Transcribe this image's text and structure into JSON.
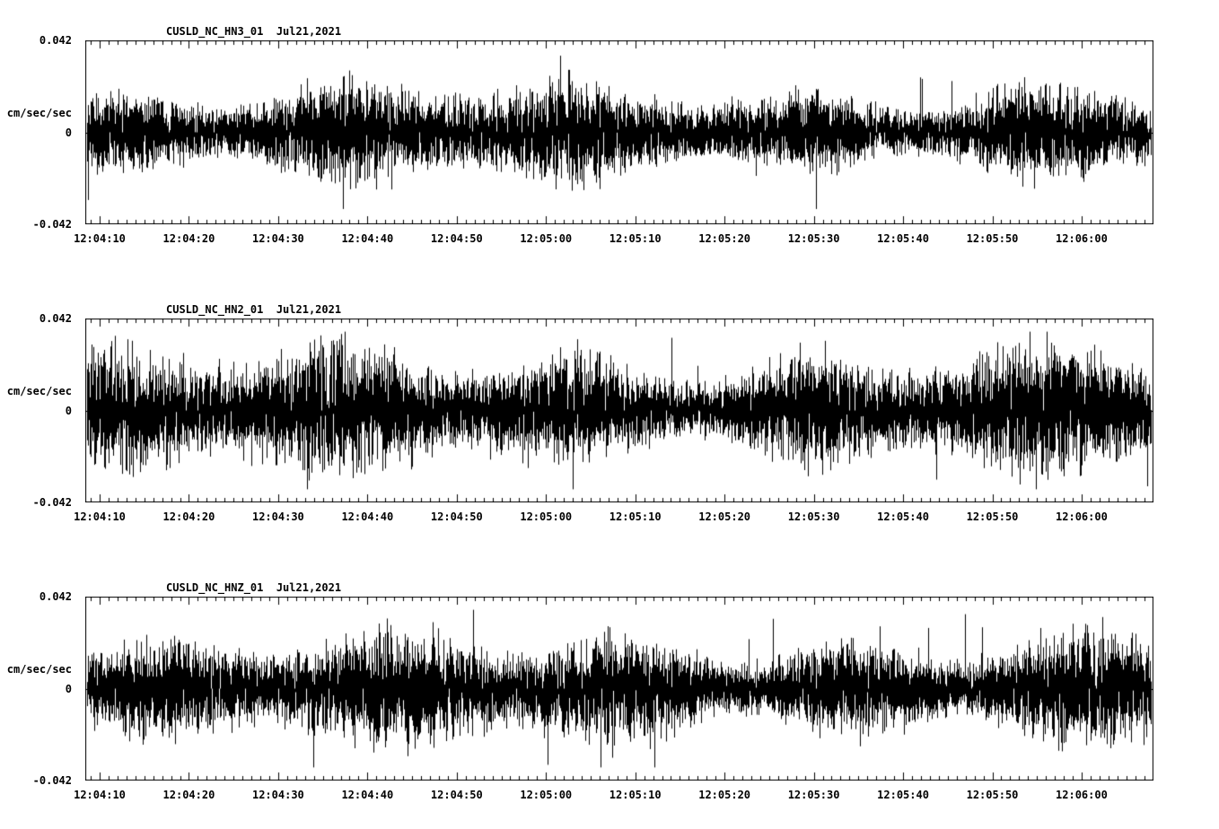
{
  "page": {
    "background": "#ffffff",
    "text_color": "#000000",
    "trace_color": "#000000"
  },
  "chart_data": [
    {
      "type": "line",
      "title": "CUSLD_NC_HN3_01  Jul21,2021",
      "station": "CUSLD_NC_HN3_01",
      "date": "Jul21,2021",
      "ylabel": "cm/sec/sec",
      "ylim": [
        -0.042,
        0.042
      ],
      "ytick_labels": [
        "0.042",
        "0",
        "-0.042"
      ],
      "x_tick_labels": [
        "12:04:10",
        "12:04:20",
        "12:04:30",
        "12:04:40",
        "12:04:50",
        "12:05:00",
        "12:05:10",
        "12:05:20",
        "12:05:30",
        "12:05:40",
        "12:05:50",
        "12:06:00"
      ],
      "x_minor_ticks_per_major": 10,
      "grid": false,
      "legend": "none",
      "seed": 101,
      "noise_rms": 0.0075,
      "noise_peak": 0.035,
      "line_color": "#000000",
      "description": "continuous high-frequency seismic acceleration noise centered on 0, dense band about +/-0.015 with occasional spikes to +/-0.035"
    },
    {
      "type": "line",
      "title": "CUSLD_NC_HN2_01  Jul21,2021",
      "station": "CUSLD_NC_HN2_01",
      "date": "Jul21,2021",
      "ylabel": "cm/sec/sec",
      "ylim": [
        -0.042,
        0.042
      ],
      "ytick_labels": [
        "0.042",
        "0",
        "-0.042"
      ],
      "x_tick_labels": [
        "12:04:10",
        "12:04:20",
        "12:04:30",
        "12:04:40",
        "12:04:50",
        "12:05:00",
        "12:05:10",
        "12:05:20",
        "12:05:30",
        "12:05:40",
        "12:05:50",
        "12:06:00"
      ],
      "x_minor_ticks_per_major": 10,
      "grid": false,
      "legend": "none",
      "seed": 202,
      "noise_rms": 0.0095,
      "noise_peak": 0.036,
      "line_color": "#000000",
      "description": "continuous high-frequency seismic acceleration noise centered on 0, dense band about +/-0.018 with occasional spikes to +/-0.036"
    },
    {
      "type": "line",
      "title": "CUSLD_NC_HNZ_01  Jul21,2021",
      "station": "CUSLD_NC_HNZ_01",
      "date": "Jul21,2021",
      "ylabel": "cm/sec/sec",
      "ylim": [
        -0.042,
        0.042
      ],
      "ytick_labels": [
        "0.042",
        "0",
        "-0.042"
      ],
      "x_tick_labels": [
        "12:04:10",
        "12:04:20",
        "12:04:30",
        "12:04:40",
        "12:04:50",
        "12:05:00",
        "12:05:10",
        "12:05:20",
        "12:05:30",
        "12:05:40",
        "12:05:50",
        "12:06:00"
      ],
      "x_minor_ticks_per_major": 10,
      "grid": false,
      "legend": "none",
      "seed": 303,
      "noise_rms": 0.0085,
      "noise_peak": 0.036,
      "line_color": "#000000",
      "description": "continuous high-frequency seismic acceleration noise centered on 0, dense band about +/-0.017 with occasional spikes to +/-0.036"
    }
  ]
}
